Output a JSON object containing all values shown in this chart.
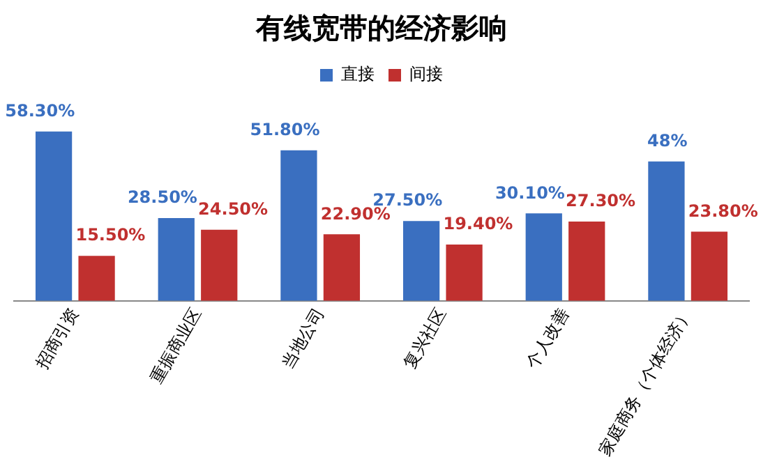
{
  "chart_data": {
    "type": "bar",
    "title": "有线宽带的经济影响",
    "categories": [
      "招商引资",
      "重振商业区",
      "当地公司",
      "复兴社区",
      "个人改善",
      "家庭商务（个体经济）"
    ],
    "series": [
      {
        "name": "直接",
        "color": "#3a6fc0",
        "values": [
          58.3,
          28.5,
          51.8,
          27.5,
          30.1,
          48
        ],
        "value_labels": [
          "58.30%",
          "28.50%",
          "51.80%",
          "27.50%",
          "30.10%",
          "48%"
        ]
      },
      {
        "name": "间接",
        "color": "#c0302f",
        "values": [
          15.5,
          24.5,
          22.9,
          19.4,
          27.3,
          23.8
        ],
        "value_labels": [
          "15.50%",
          "24.50%",
          "22.90%",
          "19.40%",
          "27.30%",
          "23.80%"
        ]
      }
    ],
    "legend": "top",
    "grid": false,
    "tick_labels": "x"
  }
}
